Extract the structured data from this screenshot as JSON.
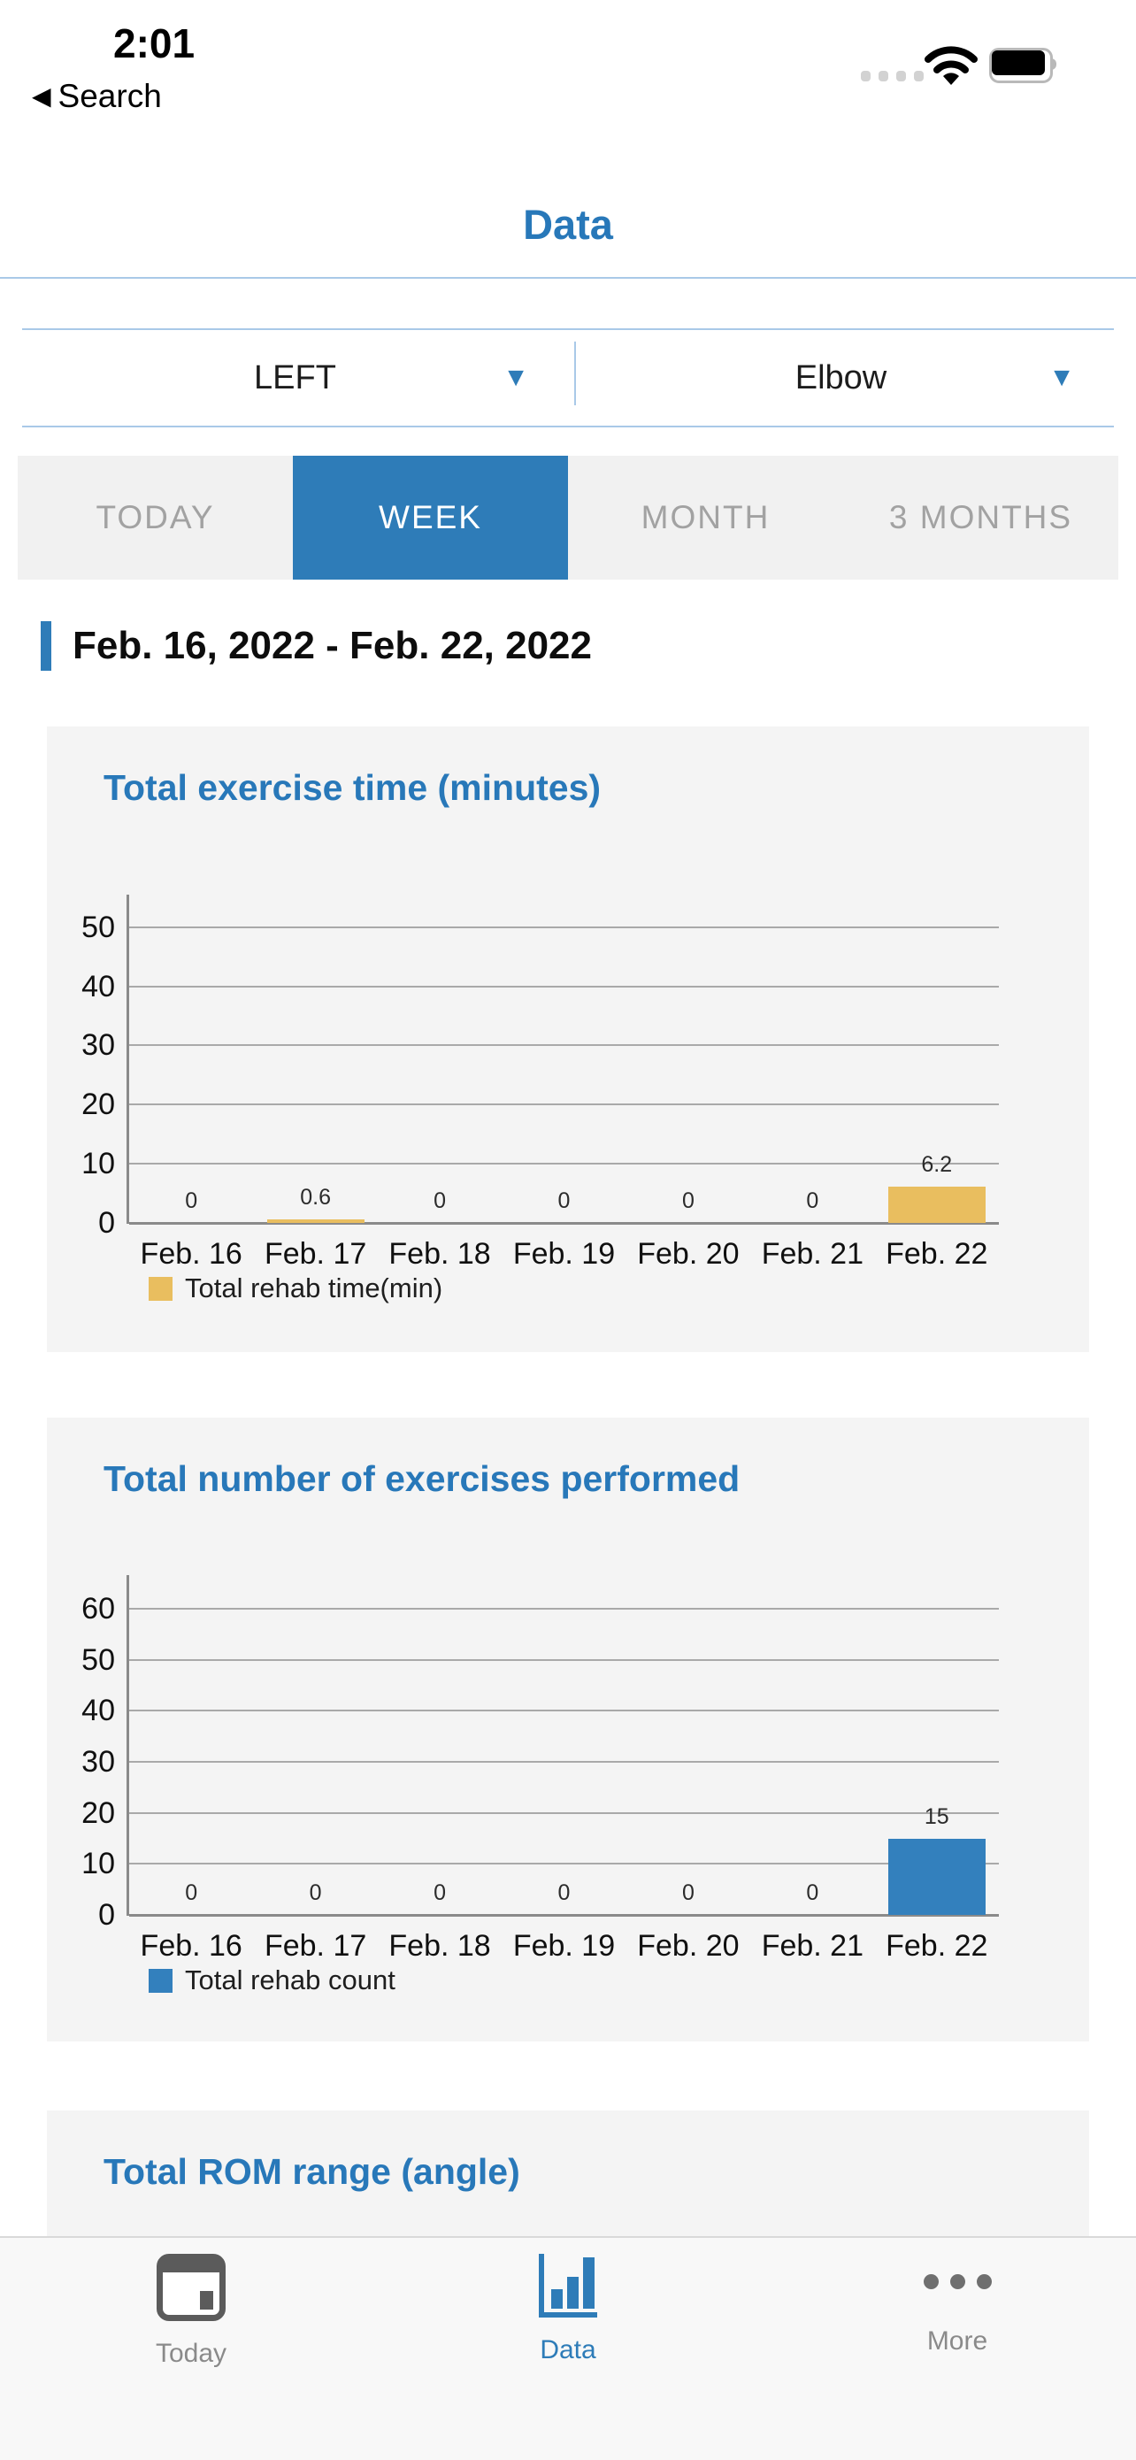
{
  "status_bar": {
    "time": "2:01",
    "back_button": "Search",
    "icons": [
      "cellular-dots-icon",
      "wifi-icon",
      "battery-full-icon"
    ]
  },
  "header": {
    "title": "Data"
  },
  "filters": {
    "side": {
      "value": "LEFT",
      "chevron": "▼"
    },
    "joint": {
      "value": "Elbow",
      "chevron": "▼"
    }
  },
  "range_tabs": {
    "items": [
      {
        "label": "TODAY",
        "selected": false
      },
      {
        "label": "WEEK",
        "selected": true
      },
      {
        "label": "MONTH",
        "selected": false
      },
      {
        "label": "3 MONTHS",
        "selected": false
      }
    ]
  },
  "date_range": {
    "label": "Feb. 16, 2022 - Feb. 22, 2022"
  },
  "chart_data": [
    {
      "type": "bar",
      "title": "Total exercise time (minutes)",
      "categories": [
        "Feb. 16",
        "Feb. 17",
        "Feb. 18",
        "Feb. 19",
        "Feb. 20",
        "Feb. 21",
        "Feb. 22"
      ],
      "series": [
        {
          "name": "Total rehab time(min)",
          "color": "#e9be5f",
          "values": [
            0,
            0.6,
            0,
            0,
            0,
            0,
            6.2
          ]
        }
      ],
      "ylim": [
        0,
        50
      ],
      "ytick_step": 10,
      "grid": true,
      "bar_value_labels": true,
      "legend_position": "bottom-left"
    },
    {
      "type": "bar",
      "title": "Total number of exercises performed",
      "categories": [
        "Feb. 16",
        "Feb. 17",
        "Feb. 18",
        "Feb. 19",
        "Feb. 20",
        "Feb. 21",
        "Feb. 22"
      ],
      "series": [
        {
          "name": "Total rehab count",
          "color": "#3380bd",
          "values": [
            0,
            0,
            0,
            0,
            0,
            0,
            15
          ]
        }
      ],
      "ylim": [
        0,
        60
      ],
      "ytick_step": 10,
      "grid": true,
      "bar_value_labels": true,
      "legend_position": "bottom-left"
    },
    {
      "type": "bar",
      "title": "Total ROM range (angle)",
      "note": "card partially visible; only title shown above tab bar"
    }
  ],
  "tab_bar": {
    "items": [
      {
        "label": "Today",
        "icon": "today-calendar-icon",
        "active": false
      },
      {
        "label": "Data",
        "icon": "bar-chart-icon",
        "active": true
      },
      {
        "label": "More",
        "icon": "ellipsis-icon",
        "active": false
      }
    ]
  },
  "colors": {
    "accent": "#2e7cb8",
    "title_blue": "#2878b9",
    "divider_blue": "#a9c9e8",
    "segment_bg": "#f1f1f1",
    "segment_text": "#a2a2a2",
    "card_bg": "#f4f4f4",
    "bar_gold": "#e9be5f",
    "bar_blue": "#3380bd",
    "tab_gray": "#8a8a8a"
  }
}
